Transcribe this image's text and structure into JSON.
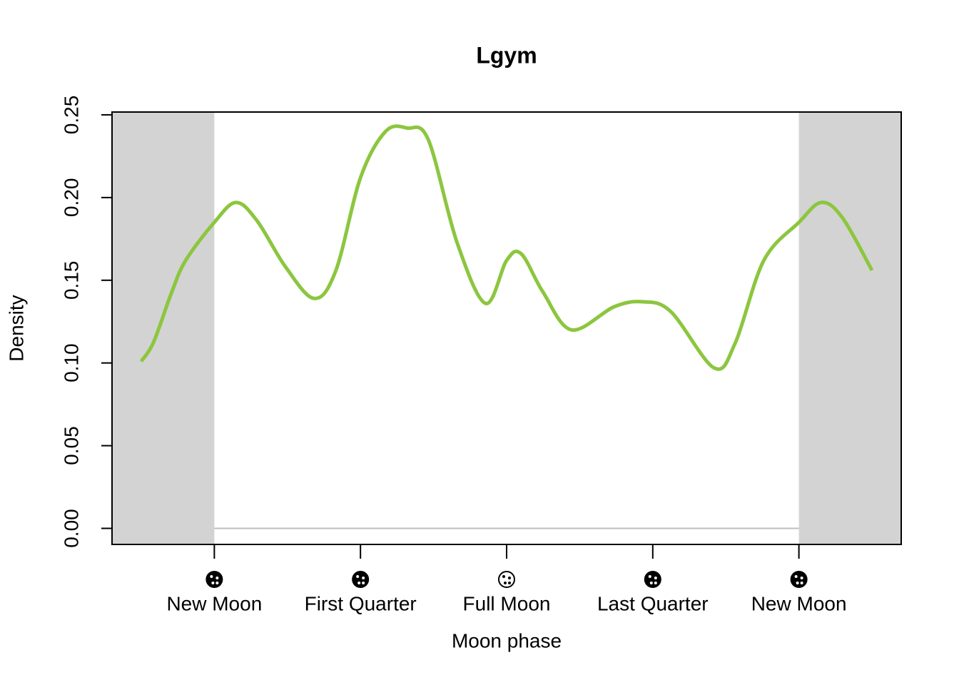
{
  "chart_data": {
    "type": "line",
    "title": "Lgym",
    "x_label": "Moon phase",
    "y_label": "Density",
    "x": [
      -0.125,
      -0.104,
      -0.073,
      -0.049,
      0,
      0.037,
      0.073,
      0.122,
      0.171,
      0.208,
      0.25,
      0.293,
      0.33,
      0.366,
      0.415,
      0.464,
      0.5,
      0.525,
      0.562,
      0.611,
      0.684,
      0.733,
      0.781,
      0.855,
      0.891,
      0.94,
      1.0,
      1.038,
      1.074,
      1.125
    ],
    "values": [
      0.101,
      0.1125,
      0.1427,
      0.162,
      0.185,
      0.197,
      0.186,
      0.158,
      0.139,
      0.156,
      0.212,
      0.24,
      0.242,
      0.235,
      0.173,
      0.136,
      0.162,
      0.166,
      0.143,
      0.12,
      0.134,
      0.137,
      0.131,
      0.097,
      0.112,
      0.162,
      0.185,
      0.197,
      0.188,
      0.156
    ],
    "color": "#8cc63f",
    "xlim": [
      -0.175,
      1.175
    ],
    "xticks": [
      {
        "value": 0,
        "label": "New Moon"
      },
      {
        "value": 0.25,
        "label": "First Quarter"
      },
      {
        "value": 0.5,
        "label": "Full Moon"
      },
      {
        "value": 0.75,
        "label": "Last Quarter"
      },
      {
        "value": 1,
        "label": "New Moon"
      }
    ],
    "ylim": [
      -0.0097,
      0.2517
    ],
    "yticks": [
      {
        "value": 0,
        "label": "0.00"
      },
      {
        "value": 0.05,
        "label": "0.05"
      },
      {
        "value": 0.1,
        "label": "0.10"
      },
      {
        "value": 0.15,
        "label": "0.15"
      },
      {
        "value": 0.2,
        "label": "0.20"
      },
      {
        "value": 0.25,
        "label": "0.25"
      }
    ]
  }
}
